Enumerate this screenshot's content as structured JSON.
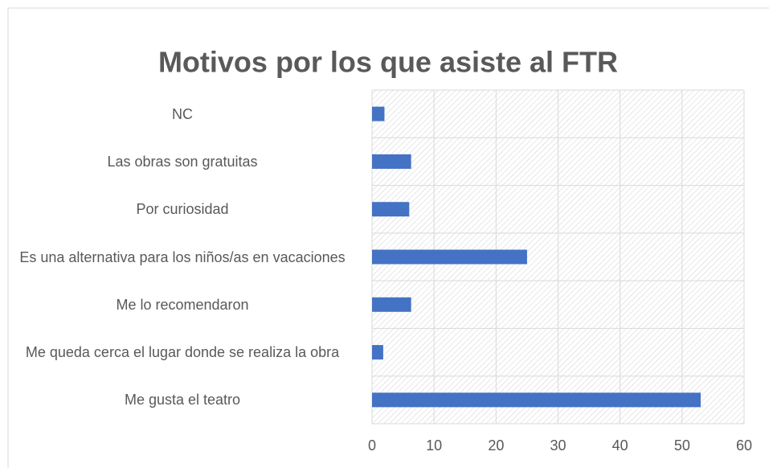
{
  "chart_data": {
    "type": "bar",
    "orientation": "horizontal",
    "title": "Motivos por los que asiste al FTR",
    "categories": [
      "NC",
      "Las obras son gratuitas",
      "Por curiosidad",
      "Es una alternativa para los niños/as en vacaciones",
      "Me lo recomendaron",
      "Me queda cerca el lugar donde se realiza la obra",
      "Me gusta el teatro"
    ],
    "values": [
      2,
      6.3,
      6,
      25,
      6.3,
      1.8,
      53
    ],
    "color": "#4472c4",
    "xlim": [
      0,
      60
    ],
    "xticks": [
      0,
      10,
      20,
      30,
      40,
      50,
      60
    ],
    "grid": true
  }
}
